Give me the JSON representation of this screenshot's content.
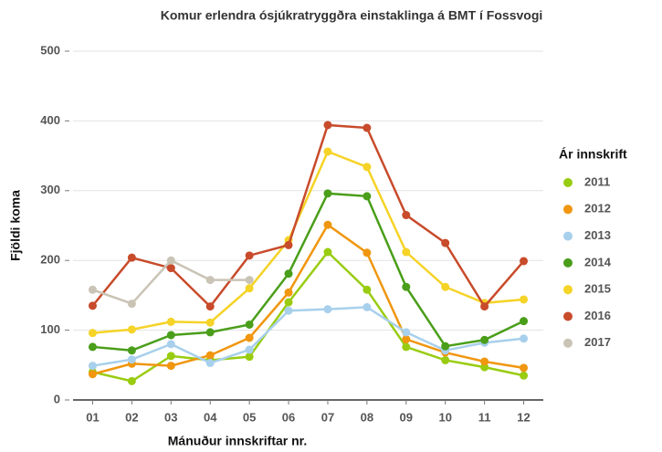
{
  "chart_data": {
    "type": "line",
    "title": "Komur erlendra ósjúkratryggðra einstaklinga á BMT í Fossvogi",
    "x_label": "Mánuður innskriftar nr.",
    "y_label": "Fjöldi koma",
    "legend_title": "Ár innskrift",
    "legend_position": "right",
    "grid": true,
    "categories": [
      "01",
      "02",
      "03",
      "04",
      "05",
      "06",
      "07",
      "08",
      "09",
      "10",
      "11",
      "12"
    ],
    "ylim": [
      0,
      500
    ],
    "yticks": [
      0,
      100,
      200,
      300,
      400,
      500
    ],
    "series": [
      {
        "name": "2011",
        "color": "#99cc11",
        "values": [
          40,
          27,
          63,
          57,
          62,
          140,
          212,
          158,
          76,
          57,
          47,
          35
        ]
      },
      {
        "name": "2012",
        "color": "#f0960f",
        "values": [
          37,
          52,
          49,
          64,
          89,
          154,
          251,
          211,
          87,
          68,
          55,
          46
        ]
      },
      {
        "name": "2013",
        "color": "#a8d0ec",
        "values": [
          49,
          58,
          80,
          53,
          72,
          128,
          130,
          133,
          97,
          71,
          82,
          88
        ]
      },
      {
        "name": "2014",
        "color": "#4a9e1a",
        "values": [
          76,
          71,
          93,
          97,
          108,
          181,
          296,
          292,
          162,
          77,
          86,
          113
        ]
      },
      {
        "name": "2015",
        "color": "#f5d327",
        "values": [
          96,
          101,
          112,
          111,
          160,
          229,
          356,
          334,
          212,
          162,
          139,
          144
        ]
      },
      {
        "name": "2016",
        "color": "#c84b2b",
        "values": [
          135,
          204,
          189,
          134,
          207,
          222,
          394,
          390,
          265,
          225,
          134,
          199
        ]
      },
      {
        "name": "2017",
        "color": "#c9c4b5",
        "values": [
          158,
          138,
          200,
          172,
          172,
          null,
          null,
          null,
          null,
          null,
          null,
          null
        ]
      }
    ]
  }
}
